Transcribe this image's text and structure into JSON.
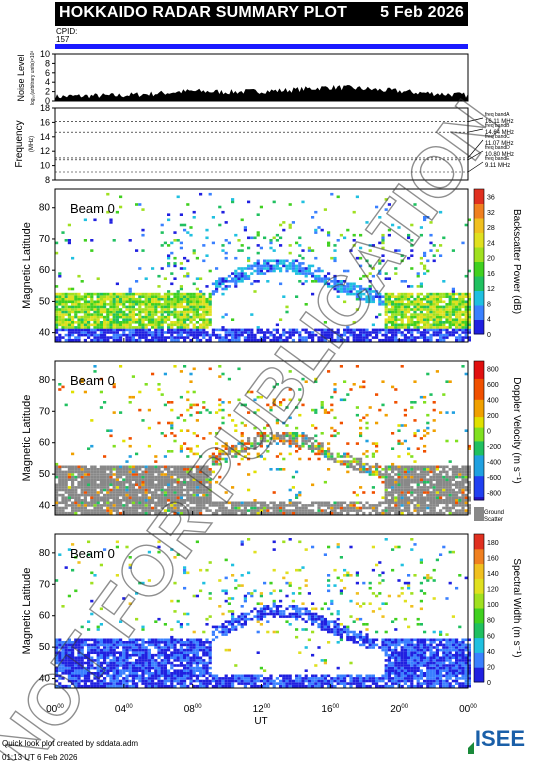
{
  "header": {
    "title": "HOKKAIDO RADAR SUMMARY PLOT",
    "date": "5 Feb 2026"
  },
  "cpid": {
    "label": "CPID:",
    "value": "157"
  },
  "footer": {
    "line1": "Quick look plot created by sddata.adm",
    "line2": "01:13 UT  6 Feb 2026"
  },
  "logo": {
    "text": "ISEE"
  },
  "watermark": "NOT FOR PUBLICATION",
  "chart_data": [
    {
      "type": "area",
      "ylabel": "Noise Level",
      "ylabel2": "log₁₀(arbitrary units)×10³",
      "ylim": [
        0,
        10
      ],
      "yticks": [
        "0",
        "2",
        "4",
        "6",
        "8",
        "10"
      ],
      "x_hours": [
        0,
        1,
        2,
        3,
        4,
        5,
        6,
        7,
        8,
        9,
        10,
        11,
        12,
        13,
        14,
        15,
        16,
        17,
        18,
        19,
        20,
        21,
        22,
        23,
        24
      ],
      "values": [
        0.8,
        0.9,
        1.0,
        1.0,
        1.1,
        1.3,
        1.5,
        1.8,
        2.0,
        1.9,
        1.8,
        1.9,
        2.0,
        2.1,
        2.3,
        2.6,
        2.8,
        2.7,
        2.5,
        2.2,
        2.0,
        1.7,
        1.5,
        1.3,
        1.1
      ]
    },
    {
      "type": "line",
      "ylabel": "Frequency",
      "ylabel2": "(MHz)",
      "ylim": [
        8,
        18
      ],
      "yticks": [
        "8",
        "10",
        "12",
        "14",
        "16",
        "18"
      ],
      "bands": [
        {
          "name": "freq bandA",
          "freq_mhz": 16.11,
          "label": "16.11 MHz"
        },
        {
          "name": "freq bandB",
          "freq_mhz": 14.64,
          "label": "14.64 MHz"
        },
        {
          "name": "freq bandC",
          "freq_mhz": 11.07,
          "label": "11.07 MHz"
        },
        {
          "name": "freq bandD",
          "freq_mhz": 10.8,
          "label": "10.80 MHz"
        },
        {
          "name": "freq bandE",
          "freq_mhz": 9.11,
          "label": "9.11 MHz"
        }
      ]
    },
    {
      "type": "heatmap",
      "beam_label": "Beam  0",
      "ylabel": "Magnetic Latitude",
      "ylim": [
        37,
        86
      ],
      "yticks": [
        "40",
        "50",
        "60",
        "70",
        "80"
      ],
      "colorbar_label": "Backscatter Power (dB)",
      "colorbar_ticks": [
        "0",
        "4",
        "8",
        "12",
        "16",
        "20",
        "24",
        "28",
        "32",
        "36"
      ],
      "colorbar_range": [
        0,
        38
      ],
      "parameter": "power"
    },
    {
      "type": "heatmap",
      "beam_label": "Beam  0",
      "ylabel": "Magnetic Latitude",
      "ylim": [
        37,
        86
      ],
      "yticks": [
        "40",
        "50",
        "60",
        "70",
        "80"
      ],
      "colorbar_label": "Doppler Velocity (m s⁻¹)",
      "colorbar_ticks": [
        "800",
        "600",
        "400",
        "200",
        "0",
        "-200",
        "-400",
        "-600",
        "-800"
      ],
      "colorbar_range": [
        -900,
        900
      ],
      "ground_scatter_label": [
        "Ground",
        "Scatter"
      ],
      "parameter": "velocity"
    },
    {
      "type": "heatmap",
      "beam_label": "Beam  0",
      "ylabel": "Magnetic Latitude",
      "ylim": [
        37,
        86
      ],
      "yticks": [
        "40",
        "50",
        "60",
        "70",
        "80"
      ],
      "colorbar_label": "Spectral Width (m s⁻¹)",
      "colorbar_ticks": [
        "0",
        "20",
        "40",
        "60",
        "80",
        "100",
        "120",
        "140",
        "160",
        "180"
      ],
      "colorbar_range": [
        0,
        190
      ],
      "parameter": "width"
    }
  ],
  "xaxis": {
    "label": "UT",
    "ticks": [
      {
        "hour": 0,
        "base": "00",
        "sup": "00"
      },
      {
        "hour": 4,
        "base": "04",
        "sup": "00"
      },
      {
        "hour": 8,
        "base": "08",
        "sup": "00"
      },
      {
        "hour": 12,
        "base": "12",
        "sup": "00"
      },
      {
        "hour": 16,
        "base": "16",
        "sup": "00"
      },
      {
        "hour": 20,
        "base": "20",
        "sup": "00"
      },
      {
        "hour": 24,
        "base": "00",
        "sup": "00"
      }
    ]
  }
}
